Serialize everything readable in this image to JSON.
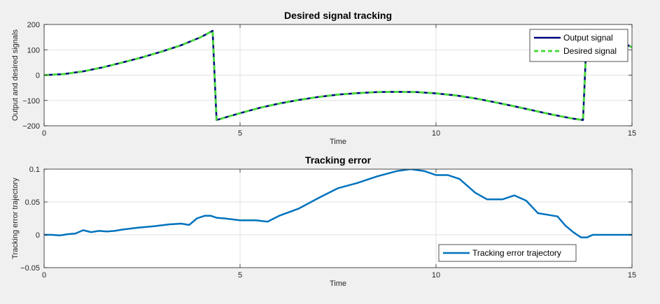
{
  "chart_data": [
    {
      "type": "line",
      "title": "Desired signal tracking",
      "xlabel": "Time",
      "ylabel": "Output and desired signals",
      "xlim": [
        0,
        15
      ],
      "ylim": [
        -200,
        200
      ],
      "xticks": [
        0,
        5,
        10,
        15
      ],
      "yticks": [
        -200,
        -100,
        0,
        100,
        200
      ],
      "xtick_labels": [
        "0",
        "5",
        "10",
        "15"
      ],
      "ytick_labels": [
        "−200",
        "−100",
        "0",
        "100",
        "200"
      ],
      "grid": true,
      "legend_position": "top-right",
      "series": [
        {
          "name": "Output signal",
          "color": "#00007f",
          "style": "solid",
          "x": [
            0,
            0.5,
            1,
            1.5,
            2,
            2.5,
            3,
            3.5,
            4,
            4.3,
            4.4,
            5,
            5.5,
            6,
            6.5,
            7,
            7.5,
            8,
            8.5,
            9,
            9.5,
            10,
            10.5,
            11,
            11.5,
            12,
            12.5,
            13,
            13.5,
            13.75,
            13.85,
            14.5,
            15
          ],
          "y": [
            0,
            4,
            15,
            31,
            50,
            70,
            93,
            118,
            150,
            175,
            -177,
            -150,
            -129,
            -112,
            -98,
            -86,
            -77,
            -71,
            -67,
            -66,
            -67,
            -72,
            -80,
            -92,
            -107,
            -123,
            -140,
            -157,
            -172,
            -177,
            178,
            148,
            110
          ]
        },
        {
          "name": "Desired signal",
          "color": "#4cd93f",
          "style": "dashed",
          "x": [
            0,
            0.5,
            1,
            1.5,
            2,
            2.5,
            3,
            3.5,
            4,
            4.3,
            4.4,
            5,
            5.5,
            6,
            6.5,
            7,
            7.5,
            8,
            8.5,
            9,
            9.5,
            10,
            10.5,
            11,
            11.5,
            12,
            12.5,
            13,
            13.5,
            13.75,
            13.85,
            14.5,
            15
          ],
          "y": [
            0,
            4,
            15,
            31,
            50,
            70,
            93,
            118,
            150,
            175,
            -177,
            -150,
            -129,
            -112,
            -98,
            -86,
            -77,
            -71,
            -67,
            -66,
            -67,
            -72,
            -80,
            -92,
            -107,
            -123,
            -140,
            -157,
            -172,
            -177,
            178,
            148,
            110
          ]
        }
      ]
    },
    {
      "type": "line",
      "title": "Tracking error",
      "xlabel": "Time",
      "ylabel": "Tracking error trajectory",
      "xlim": [
        0,
        15
      ],
      "ylim": [
        -0.05,
        0.1
      ],
      "xticks": [
        0,
        5,
        10,
        15
      ],
      "yticks": [
        -0.05,
        0,
        0.05,
        0.1
      ],
      "xtick_labels": [
        "0",
        "5",
        "10",
        "15"
      ],
      "ytick_labels": [
        "−0.05",
        "0",
        "0.05",
        "0.1"
      ],
      "grid": true,
      "legend_position": "bottom-right",
      "series": [
        {
          "name": "Tracking error trajectory",
          "color": "#0072bd",
          "style": "solid",
          "x": [
            0,
            0.2,
            0.4,
            0.6,
            0.8,
            1.0,
            1.2,
            1.4,
            1.6,
            1.8,
            2.0,
            2.4,
            2.8,
            3.2,
            3.5,
            3.7,
            3.9,
            4.1,
            4.25,
            4.4,
            4.6,
            5.0,
            5.4,
            5.7,
            6.0,
            6.5,
            7.0,
            7.5,
            8.0,
            8.5,
            9.0,
            9.35,
            9.7,
            10.0,
            10.3,
            10.6,
            11.0,
            11.3,
            11.7,
            12.0,
            12.3,
            12.6,
            12.9,
            13.1,
            13.3,
            13.5,
            13.7,
            13.85,
            14.0,
            14.5,
            15.0
          ],
          "y": [
            0.0,
            0.0,
            -0.001,
            0.001,
            0.002,
            0.007,
            0.004,
            0.006,
            0.005,
            0.006,
            0.008,
            0.011,
            0.013,
            0.016,
            0.017,
            0.015,
            0.025,
            0.029,
            0.029,
            0.026,
            0.025,
            0.022,
            0.022,
            0.02,
            0.029,
            0.04,
            0.056,
            0.071,
            0.079,
            0.089,
            0.097,
            0.1,
            0.097,
            0.091,
            0.091,
            0.085,
            0.064,
            0.054,
            0.054,
            0.06,
            0.052,
            0.033,
            0.03,
            0.028,
            0.014,
            0.004,
            -0.004,
            -0.004,
            0.0,
            0.0,
            0.0
          ]
        }
      ]
    }
  ]
}
